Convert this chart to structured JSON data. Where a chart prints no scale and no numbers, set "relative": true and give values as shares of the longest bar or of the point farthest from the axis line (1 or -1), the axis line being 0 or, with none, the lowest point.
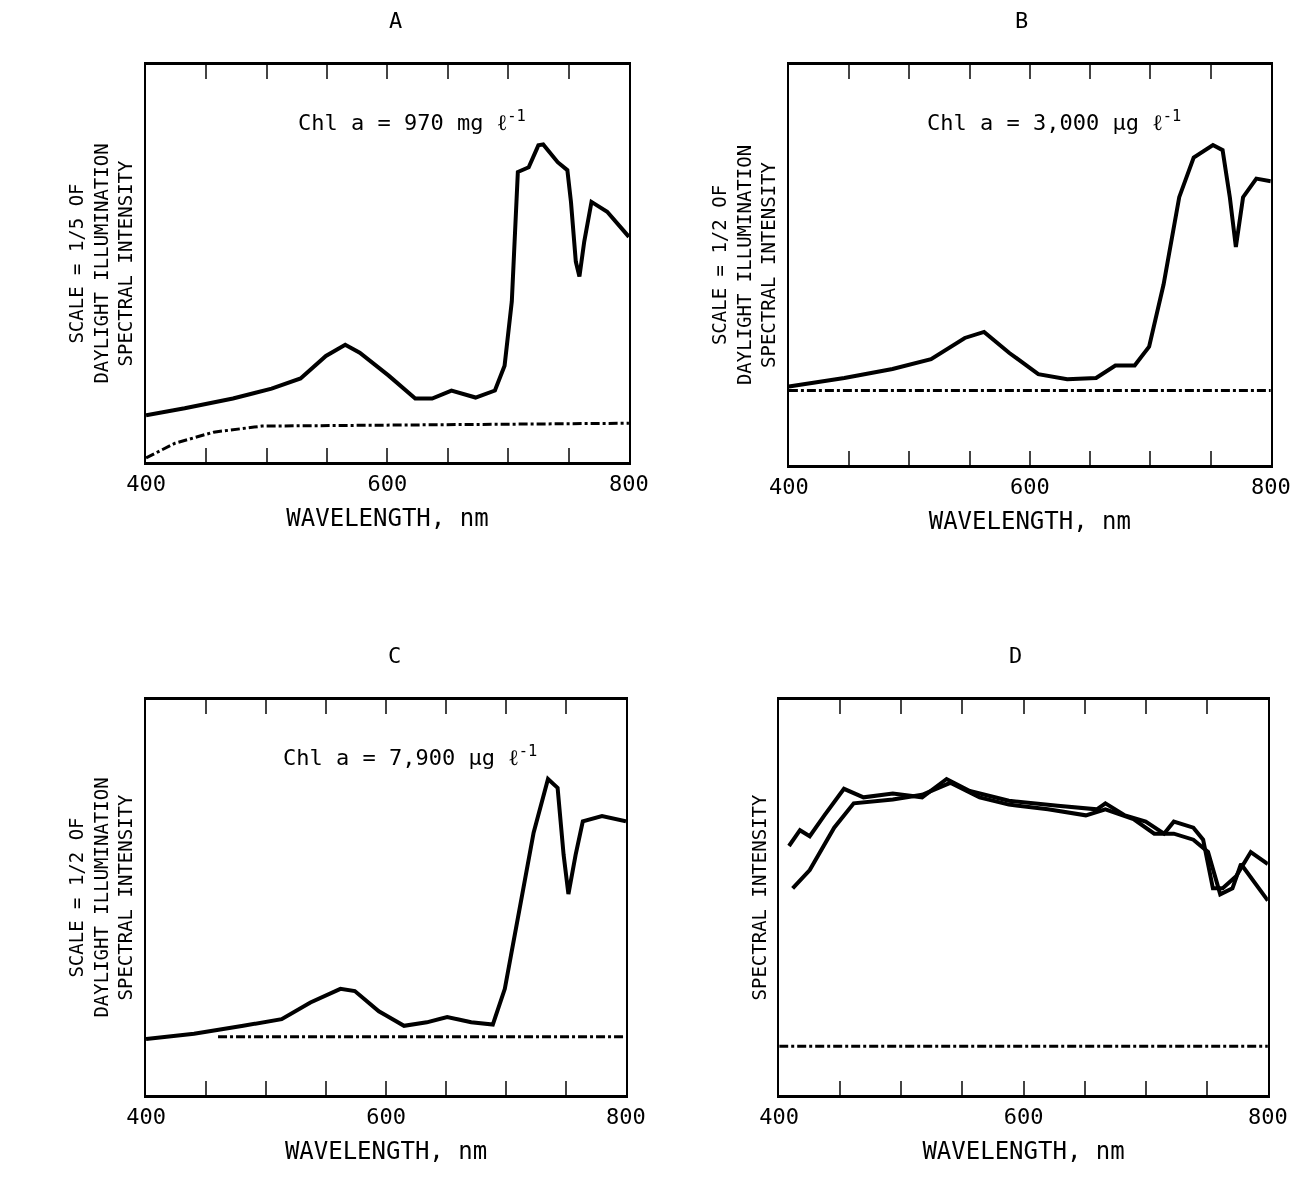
{
  "chart_data": [
    {
      "type": "line",
      "title": "A",
      "xlabel": "WAVELENGTH, nm",
      "ylabel": "SCALE = 1/5 OF\nDAYLIGHT ILLUMINATION\nSPECTRAL INTENSITY",
      "annotations": [
        "Chl a = 970 mg ℓ$^{-1}$"
      ],
      "relative": true,
      "xlim": [
        400,
        800
      ],
      "xticks": [
        400,
        {
          "value": 450,
          "label": null
        },
        {
          "value": 500,
          "label": null
        },
        {
          "value": 550,
          "label": null
        },
        600,
        {
          "value": 650,
          "label": null
        },
        {
          "value": 700,
          "label": null
        },
        {
          "value": 750,
          "label": null
        },
        800
      ],
      "series": [
        {
          "color": "#000000",
          "line_style": "solid",
          "x": [
            400,
            432,
            472,
            504,
            528,
            549,
            565,
            577,
            601,
            623,
            637,
            653,
            673,
            689,
            697,
            703,
            708,
            717,
            725,
            729,
            741,
            749,
            752,
            756,
            759,
            763,
            769,
            782,
            800
          ],
          "values": [
            0.147,
            0.169,
            0.2,
            0.231,
            0.263,
            0.334,
            0.369,
            0.344,
            0.272,
            0.2,
            0.2,
            0.225,
            0.203,
            0.225,
            0.303,
            0.506,
            0.913,
            0.928,
            0.997,
            1.0,
            0.944,
            0.919,
            0.819,
            0.631,
            0.584,
            0.694,
            0.819,
            0.788,
            0.709
          ]
        },
        {
          "color": "#000000",
          "line_style": "dashed",
          "x": [
            400,
            424,
            456,
            496,
            800
          ],
          "values": [
            0.013,
            0.059,
            0.094,
            0.113,
            0.122
          ]
        }
      ]
    },
    {
      "type": "line",
      "title": "B",
      "xlabel": "WAVELENGTH, nm",
      "ylabel": "SCALE = 1/2 OF\nDAYLIGHT ILLUMINATION\nSPECTRAL INTENSITY",
      "annotations": [
        "Chl a = 3,000 μg ℓ$^{-1}$"
      ],
      "relative": true,
      "xlim": [
        400,
        800
      ],
      "xticks": [
        400,
        {
          "value": 450,
          "label": null
        },
        {
          "value": 500,
          "label": null
        },
        {
          "value": 550,
          "label": null
        },
        600,
        {
          "value": 650,
          "label": null
        },
        {
          "value": 700,
          "label": null
        },
        {
          "value": 750,
          "label": null
        },
        800
      ],
      "series": [
        {
          "color": "#000000",
          "line_style": "solid",
          "x": [
            400,
            446,
            486,
            518,
            546,
            562,
            583,
            607,
            631,
            655,
            671,
            687,
            699,
            711,
            724,
            736,
            752,
            760,
            766,
            771,
            777,
            788,
            800
          ],
          "values": [
            0.245,
            0.272,
            0.3,
            0.331,
            0.397,
            0.416,
            0.35,
            0.284,
            0.268,
            0.272,
            0.311,
            0.311,
            0.37,
            0.564,
            0.837,
            0.961,
            1.0,
            0.984,
            0.837,
            0.681,
            0.837,
            0.895,
            0.887
          ]
        },
        {
          "color": "#000000",
          "line_style": "dashed",
          "x": [
            400,
            800
          ],
          "values": [
            0.233,
            0.233
          ]
        }
      ]
    },
    {
      "type": "line",
      "title": "C",
      "xlabel": "WAVELENGTH, nm",
      "ylabel": "SCALE = 1/2 OF\nDAYLIGHT ILLUMINATION\nSPECTRAL INTENSITY",
      "annotations": [
        "Chl a = 7,900 μg ℓ$^{-1}$"
      ],
      "relative": true,
      "xlim": [
        400,
        800
      ],
      "xticks": [
        400,
        {
          "value": 450,
          "label": null
        },
        {
          "value": 500,
          "label": null
        },
        {
          "value": 550,
          "label": null
        },
        600,
        {
          "value": 650,
          "label": null
        },
        {
          "value": 700,
          "label": null
        },
        {
          "value": 750,
          "label": null
        },
        800
      ],
      "series": [
        {
          "color": "#000000",
          "line_style": "solid",
          "x": [
            400,
            440,
            481,
            513,
            537,
            562,
            574,
            594,
            615,
            634,
            651,
            671,
            689,
            699,
            711,
            723,
            735,
            743,
            748,
            752,
            758,
            764,
            780,
            800
          ],
          "values": [
            0.177,
            0.194,
            0.219,
            0.24,
            0.293,
            0.336,
            0.329,
            0.265,
            0.219,
            0.23,
            0.247,
            0.23,
            0.223,
            0.336,
            0.583,
            0.83,
            1.0,
            0.972,
            0.76,
            0.636,
            0.76,
            0.866,
            0.883,
            0.866
          ]
        },
        {
          "color": "#000000",
          "line_style": "dashed",
          "x": [
            460,
            800
          ],
          "values": [
            0.184,
            0.184
          ]
        }
      ]
    },
    {
      "type": "line",
      "title": "D",
      "xlabel": "WAVELENGTH, nm",
      "ylabel": "SPECTRAL INTENSITY",
      "relative": true,
      "xlim": [
        400,
        800
      ],
      "xticks": [
        400,
        {
          "value": 450,
          "label": null
        },
        {
          "value": 500,
          "label": null
        },
        {
          "value": 550,
          "label": null
        },
        600,
        {
          "value": 650,
          "label": null
        },
        {
          "value": 700,
          "label": null
        },
        {
          "value": 750,
          "label": null
        },
        800
      ],
      "series": [
        {
          "color": "#000000",
          "line_style": "solid",
          "x": [
            408,
            417,
            425,
            437,
            453,
            469,
            493,
            517,
            537,
            556,
            588,
            628,
            660,
            667,
            683,
            700,
            715,
            723,
            739,
            747,
            755,
            763,
            774,
            786,
            800
          ],
          "values": [
            0.788,
            0.838,
            0.819,
            0.885,
            0.969,
            0.942,
            0.954,
            0.942,
            1.0,
            0.962,
            0.931,
            0.915,
            0.904,
            0.923,
            0.885,
            0.865,
            0.827,
            0.865,
            0.846,
            0.808,
            0.654,
            0.654,
            0.692,
            0.769,
            0.731
          ]
        },
        {
          "color": "#000000",
          "line_style": "solid",
          "x": [
            411,
            425,
            445,
            461,
            493,
            517,
            540,
            564,
            588,
            620,
            651,
            667,
            690,
            707,
            723,
            739,
            751,
            761,
            771,
            778,
            800
          ],
          "values": [
            0.654,
            0.712,
            0.846,
            0.923,
            0.935,
            0.95,
            0.988,
            0.942,
            0.919,
            0.904,
            0.885,
            0.904,
            0.873,
            0.827,
            0.827,
            0.808,
            0.769,
            0.635,
            0.654,
            0.731,
            0.615
          ]
        },
        {
          "color": "#000000",
          "line_style": "dashed",
          "x": [
            400,
            800
          ],
          "values": [
            0.154,
            0.154
          ]
        }
      ]
    }
  ]
}
